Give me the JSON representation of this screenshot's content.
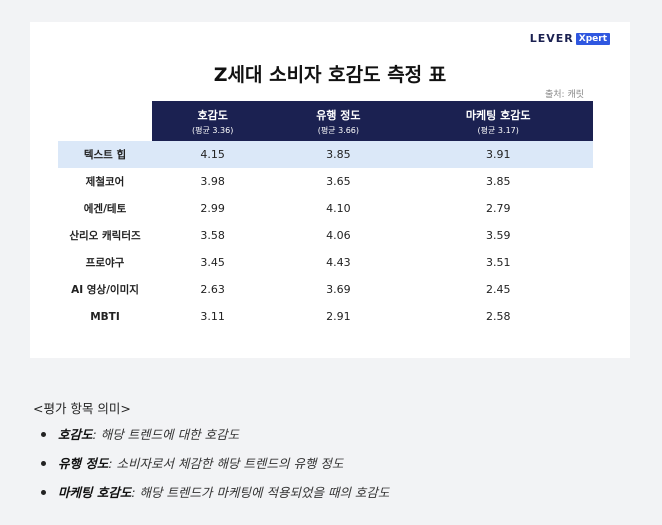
{
  "card": {
    "logo_main": "LEVER",
    "logo_badge": "Xpert",
    "title": "Z세대 소비자 호감도 측정 표",
    "source": "출처: 캐릿"
  },
  "table": {
    "columns": [
      {
        "label": "호감도",
        "sub": "(평균 3.36)"
      },
      {
        "label": "유행 정도",
        "sub": "(평균 3.66)"
      },
      {
        "label": "마케팅 호감도",
        "sub": "(평균 3.17)"
      }
    ],
    "rows": [
      {
        "label": "텍스트 힙",
        "values": [
          "4.15",
          "3.85",
          "3.91"
        ]
      },
      {
        "label": "제철코어",
        "values": [
          "3.98",
          "3.65",
          "3.85"
        ]
      },
      {
        "label": "에겐/테토",
        "values": [
          "2.99",
          "4.10",
          "2.79"
        ]
      },
      {
        "label": "산리오 캐릭터즈",
        "values": [
          "3.58",
          "4.06",
          "3.59"
        ]
      },
      {
        "label": "프로야구",
        "values": [
          "3.45",
          "4.43",
          "3.51"
        ]
      },
      {
        "label": "AI 영상/이미지",
        "values": [
          "2.63",
          "3.69",
          "2.45"
        ]
      },
      {
        "label": "MBTI",
        "values": [
          "3.11",
          "2.91",
          "2.58"
        ]
      }
    ]
  },
  "legend": {
    "heading": "<평가 항목 의미>",
    "items": [
      {
        "term": "호감도",
        "desc": ": 해당 트렌드에 대한 호감도"
      },
      {
        "term": "유행 정도",
        "desc": ": 소비자로서 체감한 해당 트렌드의 유행 정도"
      },
      {
        "term": "마케팅 호감도",
        "desc": ": 해당 트렌드가 마케팅에 적용되었을 때의 호감도"
      }
    ]
  },
  "colors": {
    "header_bg": "#1b2151",
    "highlight_row": "#dbe8f8",
    "logo_badge": "#2f57e0"
  }
}
